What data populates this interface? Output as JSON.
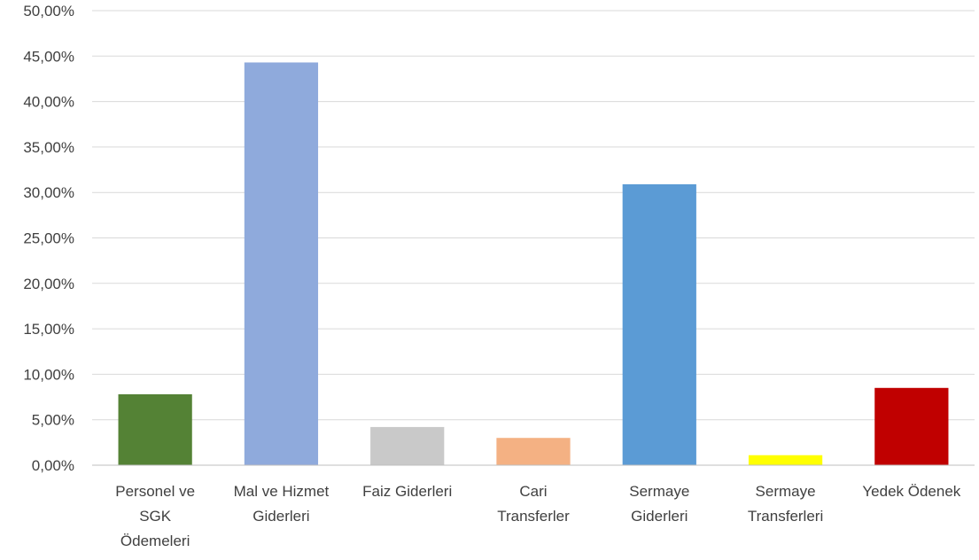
{
  "chart_data": {
    "type": "bar",
    "title": "",
    "xlabel": "",
    "ylabel": "",
    "ylim": [
      0,
      50
    ],
    "y_ticks": [
      "0,00%",
      "5,00%",
      "10,00%",
      "15,00%",
      "20,00%",
      "25,00%",
      "30,00%",
      "35,00%",
      "40,00%",
      "45,00%",
      "50,00%"
    ],
    "y_unit": "%",
    "grid": true,
    "legend": "none",
    "categories": [
      [
        "Personel ve",
        "SGK",
        "Ödemeleri"
      ],
      [
        "Mal ve Hizmet",
        "Giderleri"
      ],
      [
        "Faiz Giderleri"
      ],
      [
        "Cari",
        "Transferler"
      ],
      [
        "Sermaye",
        "Giderleri"
      ],
      [
        "Sermaye",
        "Transferleri"
      ],
      [
        "Yedek Ödenek"
      ]
    ],
    "values": [
      7.8,
      44.3,
      4.2,
      3.0,
      30.9,
      1.1,
      8.5
    ],
    "colors": [
      "#548235",
      "#8faadc",
      "#c9c9c9",
      "#f4b183",
      "#5b9bd5",
      "#ffff00",
      "#c00000"
    ]
  }
}
